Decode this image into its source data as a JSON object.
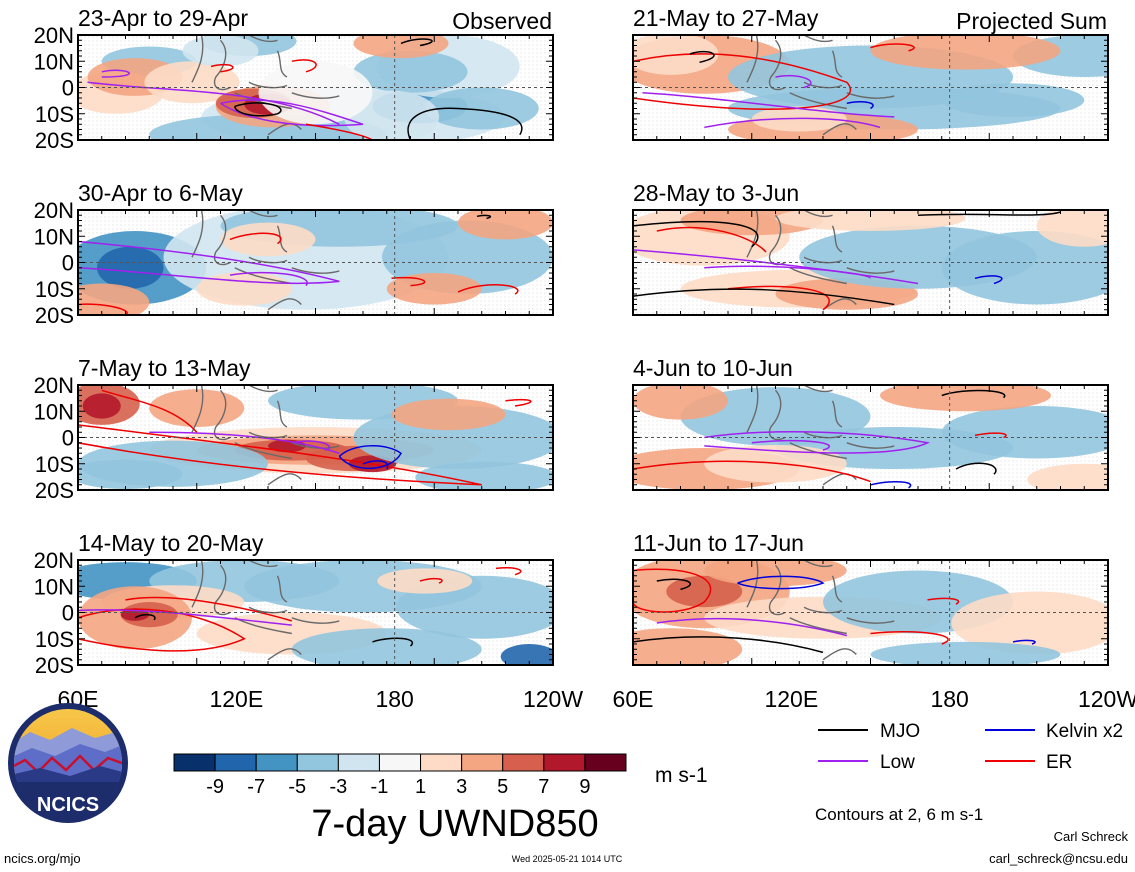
{
  "panels": [
    {
      "title": "23-Apr to 29-Apr",
      "corner": "Observed"
    },
    {
      "title": "30-Apr to 6-May",
      "corner": ""
    },
    {
      "title": "7-May to 13-May",
      "corner": ""
    },
    {
      "title": "14-May to 20-May",
      "corner": ""
    },
    {
      "title": "21-May to 27-May",
      "corner": "Projected Sum"
    },
    {
      "title": "28-May to 3-Jun",
      "corner": ""
    },
    {
      "title": "4-Jun to 10-Jun",
      "corner": ""
    },
    {
      "title": "11-Jun to 17-Jun",
      "corner": ""
    }
  ],
  "lat_labels": [
    "20N",
    "10N",
    "0",
    "10S",
    "20S"
  ],
  "lon_labels": [
    "60E",
    "120E",
    "180",
    "120W"
  ],
  "colorbar": {
    "colors": [
      "#08306b",
      "#2166ac",
      "#4393c3",
      "#92c5de",
      "#d1e5f0",
      "#f7f7f7",
      "#fddbc7",
      "#f4a582",
      "#d6604d",
      "#b2182b",
      "#67001f"
    ],
    "tick_labels": [
      "-9",
      "-7",
      "-5",
      "-3",
      "-1",
      "1",
      "3",
      "5",
      "7",
      "9"
    ],
    "units": "m s-1",
    "title": "7-day UWND850"
  },
  "legend": {
    "items": [
      {
        "label": "MJO",
        "color": "#000000"
      },
      {
        "label": "Kelvin x2",
        "color": "#0000dd"
      },
      {
        "label": "Low",
        "color": "#a020f0"
      },
      {
        "label": "ER",
        "color": "#ee0000"
      }
    ],
    "note": "Contours at 2, 6 m s-1"
  },
  "logo": {
    "text": "NCICS"
  },
  "footer": {
    "url": "ncics.org/mjo",
    "timestamp": "Wed 2025-05-21 1014 UTC",
    "author": "Carl Schreck",
    "email": "carl_schreck@ncsu.edu"
  }
}
